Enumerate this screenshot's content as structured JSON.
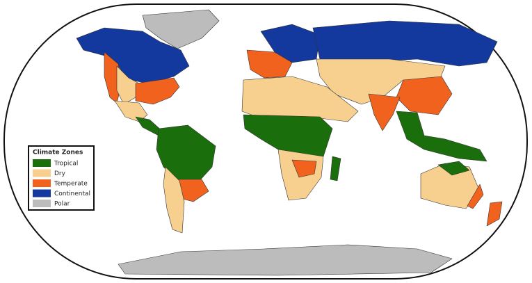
{
  "legend": {
    "title": "Climate Zones",
    "items": [
      {
        "label": "Tropical",
        "color": "#1b6e0c"
      },
      {
        "label": "Dry",
        "color": "#f7d08f"
      },
      {
        "label": "Temperate",
        "color": "#f0621e"
      },
      {
        "label": "Continental",
        "color": "#13389e"
      },
      {
        "label": "Polar",
        "color": "#bcbcbc"
      }
    ]
  }
}
